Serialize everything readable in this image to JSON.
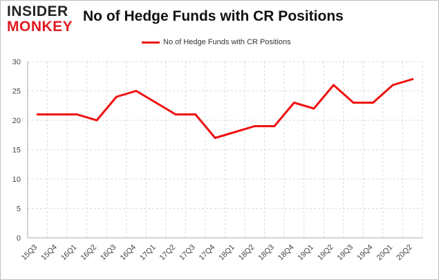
{
  "brand": {
    "line1": "INSIDER",
    "line2": "MONKEY"
  },
  "chart_data": {
    "type": "line",
    "title": "No of Hedge Funds with CR Positions",
    "xlabel": "",
    "ylabel": "",
    "ylim": [
      0,
      30
    ],
    "yticks": [
      0,
      5,
      10,
      15,
      20,
      25,
      30
    ],
    "grid": true,
    "legend_position": "top-center",
    "categories": [
      "15Q3",
      "15Q4",
      "16Q1",
      "16Q2",
      "16Q3",
      "16Q4",
      "17Q1",
      "17Q2",
      "17Q3",
      "17Q4",
      "18Q1",
      "18Q2",
      "18Q3",
      "18Q4",
      "19Q1",
      "19Q2",
      "19Q3",
      "19Q4",
      "20Q1",
      "20Q2"
    ],
    "series": [
      {
        "name": "No of Hedge Funds with CR Positions",
        "color": "#ee1111",
        "values": [
          21,
          21,
          21,
          20,
          24,
          25,
          23,
          21,
          21,
          17,
          18,
          19,
          19,
          23,
          22,
          26,
          23,
          23,
          26,
          27
        ]
      }
    ]
  }
}
